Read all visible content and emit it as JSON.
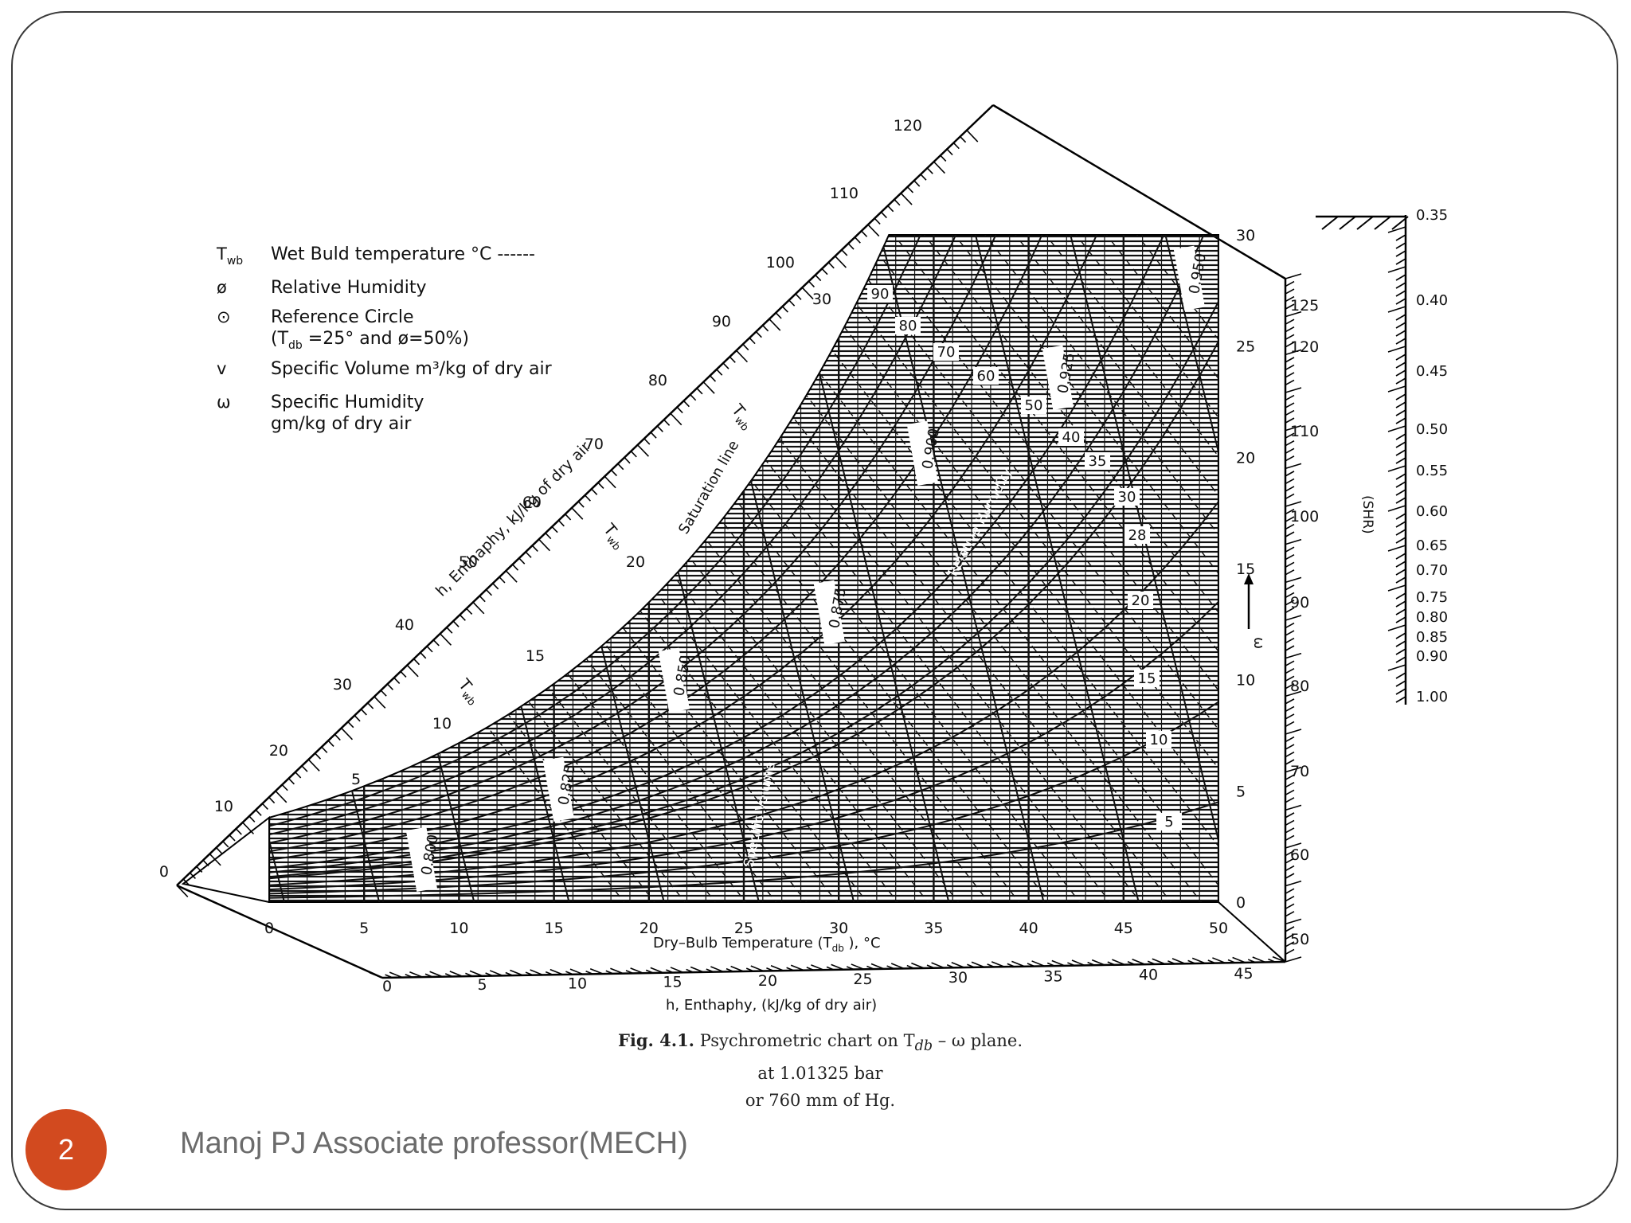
{
  "legend": [
    {
      "symbol": "T",
      "symbol_sub": "wb",
      "text": "Wet Buld temperature  °C ------"
    },
    {
      "symbol": "ø",
      "text": "Relative Humidity"
    },
    {
      "symbol": "⊙",
      "text": "Reference Circle",
      "text2": "(T",
      "text2_sub": "db",
      "text2_rest": " =25° and    ø=50%)"
    },
    {
      "symbol": "v",
      "text": "Specific Volume  m³/kg of dry air"
    },
    {
      "symbol": "ω",
      "text": "Specific Humidity",
      "text2_plain": "gm/kg  of  dry  air"
    }
  ],
  "caption": {
    "fig_label": "Fig. 4.1.",
    "title": "Psychrometric chart on T",
    "title_sub": "db",
    "title_rest": " – ω plane.",
    "line2": "at 1.01325 bar",
    "line3": "or 760 mm of Hg."
  },
  "footer": {
    "page_number": "2",
    "author": "Manoj PJ Associate professor(MECH)"
  },
  "chart_data": {
    "type": "psychrometric",
    "x_axis": {
      "label": "Dry–Bulb  Temperature  (T",
      "label_sub": "db",
      "label_rest": " ),   °C",
      "range": [
        0,
        50
      ],
      "ticks": [
        "0",
        "5",
        "10",
        "15",
        "20",
        "25",
        "30",
        "35",
        "40",
        "45",
        "50"
      ]
    },
    "y_axis": {
      "label": "ω",
      "range": [
        0,
        30
      ],
      "ticks": [
        "0",
        "5",
        "10",
        "15",
        "20",
        "25",
        "30"
      ]
    },
    "enthalpy_bottom": {
      "label": "h,  Enthaphy,  (kJ/kg  of  dry  air)",
      "ticks": [
        "0",
        "5",
        "10",
        "15",
        "20",
        "25",
        "30",
        "35",
        "40",
        "45"
      ]
    },
    "enthalpy_right": {
      "ticks": [
        "50",
        "60",
        "70",
        "80",
        "90",
        "100",
        "110",
        "120",
        "125"
      ]
    },
    "enthalpy_diagonal": {
      "label": "h, Enthaphy, kJ/kg of dry air",
      "ticks": [
        "0",
        "10",
        "20",
        "30",
        "40",
        "50",
        "60",
        "70",
        "80",
        "90",
        "100",
        "110",
        "120"
      ]
    },
    "wet_bulb_labels": [
      "5",
      "10",
      "15",
      "20",
      "30"
    ],
    "wet_bulb_symbol": "T",
    "wet_bulb_symbol_sub": "wb",
    "saturation_label": "Saturation  line",
    "relative_humidity": {
      "label": "Relative  Humidity",
      "values": [
        5,
        10,
        15,
        20,
        28,
        30,
        35,
        40,
        50,
        60,
        70,
        80,
        90
      ],
      "labels": [
        "5",
        "10",
        "15",
        "20",
        "28",
        "30",
        "35",
        "40",
        "50",
        "60",
        "70",
        "80",
        "90"
      ]
    },
    "specific_volume": {
      "label": "Specific  Volume",
      "values": [
        0.8,
        0.825,
        0.85,
        0.875,
        0.9,
        0.925,
        0.95
      ],
      "labels": [
        "0.800",
        "0.825",
        "0.850",
        "0.875",
        "0.900",
        "0.925",
        "0.950"
      ]
    },
    "shr": {
      "label": "(SHR)",
      "ticks": [
        "0.35",
        "0.40",
        "0.45",
        "0.50",
        "0.55",
        "0.60",
        "0.65",
        "0.70",
        "0.75",
        "0.80",
        "0.85",
        "0.90",
        "1.00"
      ]
    }
  }
}
